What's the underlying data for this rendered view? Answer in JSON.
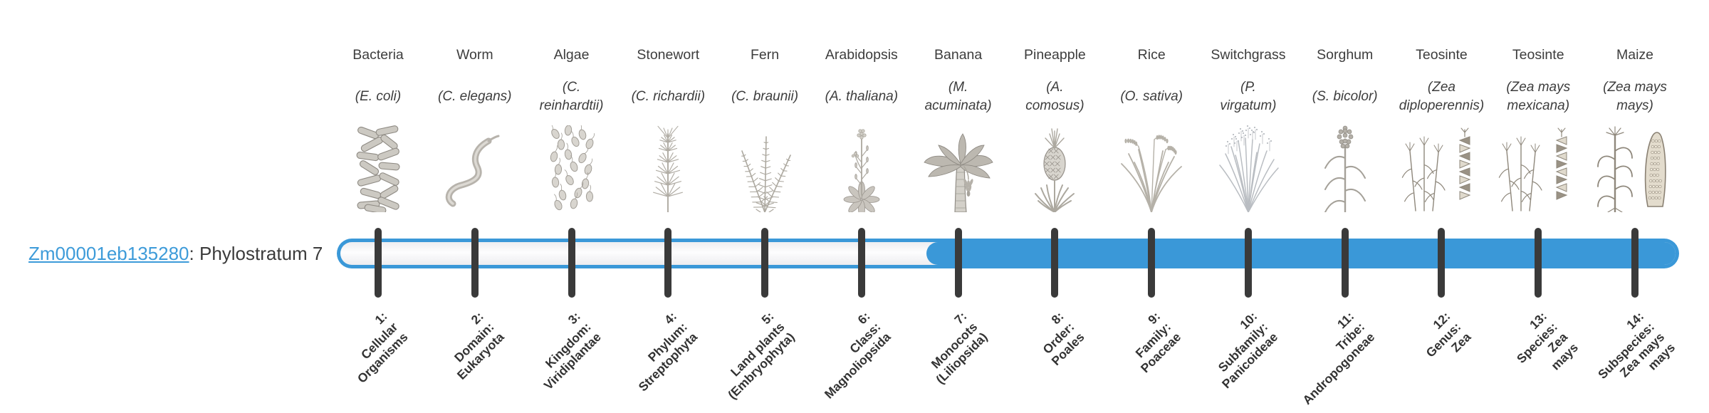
{
  "gene": {
    "id": "Zm00001eb135280",
    "suffix": ": Phylostratum 7",
    "phylostratum": 7
  },
  "timeline": {
    "tick_count": 14,
    "filled_from_stratum": 7,
    "bar_color": "#3a98d8",
    "track_background": "#f5f5f8",
    "tick_color": "#3a3a3a",
    "text_color": "#3d3d3d",
    "label_color": "#333333",
    "link_color": "#3d9bd9"
  },
  "columns": [
    {
      "name": "Bacteria",
      "sci": [
        "(E. coli)"
      ],
      "art": "bacteria-illustration",
      "stratum": [
        "1:",
        "Cellular",
        "Organisms"
      ]
    },
    {
      "name": "Worm",
      "sci": [
        "(C. elegans)"
      ],
      "art": "worm-illustration",
      "stratum": [
        "2:",
        "Domain:",
        "Eukaryota"
      ]
    },
    {
      "name": "Algae",
      "sci": [
        "(C.",
        "reinhardtii)"
      ],
      "art": "algae-illustration",
      "stratum": [
        "3:",
        "Kingdom:",
        "Viridiplantae"
      ]
    },
    {
      "name": "Stonewort",
      "sci": [
        "(C. richardii)"
      ],
      "art": "stonewort-illustration",
      "stratum": [
        "4:",
        "Phylum:",
        "Streptophyta"
      ]
    },
    {
      "name": "Fern",
      "sci": [
        "(C. braunii)"
      ],
      "art": "fern-illustration",
      "stratum": [
        "5:",
        "Land plants",
        "(Embryophyta)"
      ]
    },
    {
      "name": "Arabidopsis",
      "sci": [
        "(A. thaliana)"
      ],
      "art": "arabidopsis-illustration",
      "stratum": [
        "6:",
        "Class:",
        "Magnoliopsida"
      ]
    },
    {
      "name": "Banana",
      "sci": [
        "(M.",
        "acuminata)"
      ],
      "art": "banana-illustration",
      "stratum": [
        "7:",
        "Monocots",
        "(Liliopsida)"
      ]
    },
    {
      "name": "Pineapple",
      "sci": [
        "(A.",
        "comosus)"
      ],
      "art": "pineapple-illustration",
      "stratum": [
        "8:",
        "Order:",
        "Poales"
      ]
    },
    {
      "name": "Rice",
      "sci": [
        "(O. sativa)"
      ],
      "art": "rice-illustration",
      "stratum": [
        "9:",
        "Family:",
        "Poaceae"
      ]
    },
    {
      "name": "Switchgrass",
      "sci": [
        "(P.",
        "virgatum)"
      ],
      "art": "switchgrass-illustration",
      "stratum": [
        "10:",
        "Subfamily:",
        "Panicoideae"
      ]
    },
    {
      "name": "Sorghum",
      "sci": [
        "(S. bicolor)"
      ],
      "art": "sorghum-illustration",
      "stratum": [
        "11:",
        "Tribe:",
        "Andropogoneae"
      ]
    },
    {
      "name": "Teosinte",
      "sci": [
        "(Zea",
        "diploperennis)"
      ],
      "art": "teosinte-diploperennis-illustration",
      "stratum": [
        "12:",
        "Genus:",
        "Zea"
      ]
    },
    {
      "name": "Teosinte",
      "sci": [
        "(Zea mays",
        "mexicana)"
      ],
      "art": "teosinte-mexicana-illustration",
      "stratum": [
        "13:",
        "Species:",
        "Zea",
        "mays"
      ]
    },
    {
      "name": "Maize",
      "sci": [
        "(Zea mays",
        "mays)"
      ],
      "art": "maize-illustration",
      "stratum": [
        "14:",
        "Subspecies:",
        "Zea mays",
        "mays"
      ]
    }
  ]
}
